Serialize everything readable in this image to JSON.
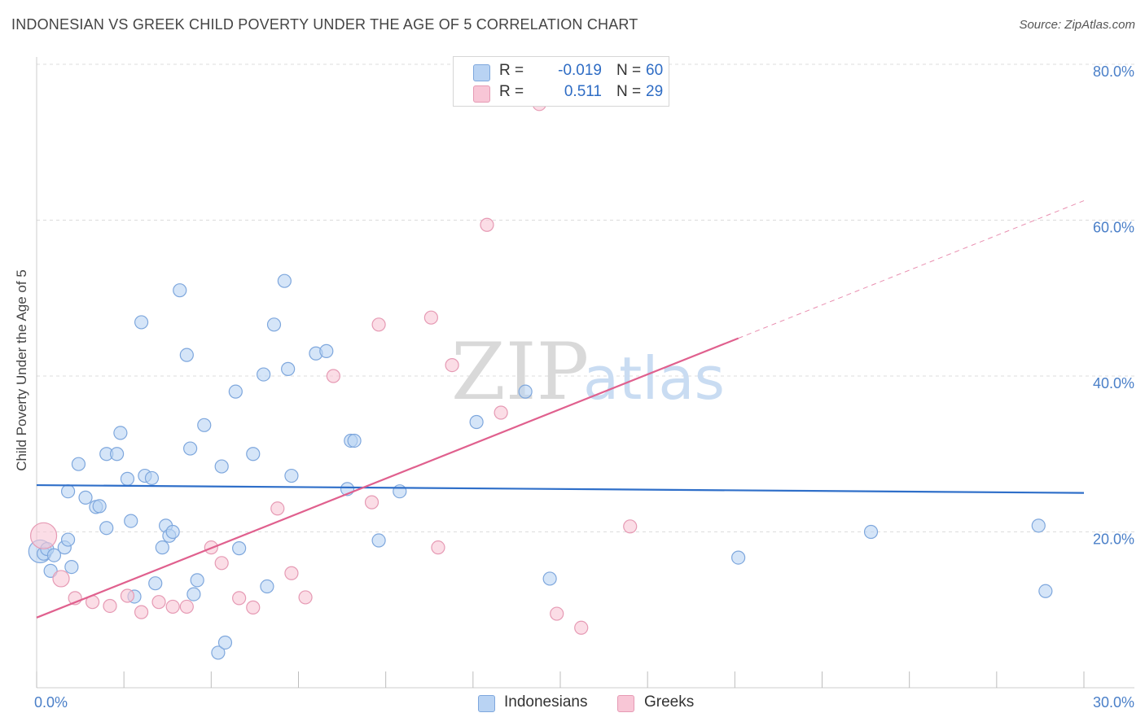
{
  "title": "INDONESIAN VS GREEK CHILD POVERTY UNDER THE AGE OF 5 CORRELATION CHART",
  "source": "Source: ZipAtlas.com",
  "watermark": {
    "zip": "ZIP",
    "atlas": "atlas"
  },
  "legend": {
    "indonesians": {
      "r_label": "R =",
      "r_value": "-0.019",
      "n_label": "N =",
      "n_value": "60"
    },
    "greeks": {
      "r_label": "R =",
      "r_value": "0.511",
      "n_label": "N =",
      "n_value": "29"
    }
  },
  "bottom_legend": {
    "indonesians": "Indonesians",
    "greeks": "Greeks"
  },
  "colors": {
    "indonesians_fill": "#b9d3f3",
    "indonesians_stroke": "#7ea7dd",
    "indonesians_line": "#2f6fc9",
    "greeks_fill": "#f8c6d6",
    "greeks_stroke": "#e69ab4",
    "greeks_line": "#e0608e",
    "tick_text": "#4a7fc8",
    "grid": "#dcdcdc"
  },
  "chart_data": {
    "type": "scatter",
    "title": "INDONESIAN VS GREEK CHILD POVERTY UNDER THE AGE OF 5 CORRELATION CHART",
    "xlabel": "",
    "ylabel": "Child Poverty Under the Age of 5",
    "xlim": [
      0,
      30
    ],
    "ylim": [
      0,
      82
    ],
    "x_tick_labels": [
      {
        "value": 0,
        "label": "0.0%"
      },
      {
        "value": 30,
        "label": "30.0%"
      }
    ],
    "y_tick_labels": [
      {
        "value": 20,
        "label": "20.0%"
      },
      {
        "value": 40,
        "label": "40.0%"
      },
      {
        "value": 60,
        "label": "60.0%"
      },
      {
        "value": 80,
        "label": "80.0%"
      }
    ],
    "series": [
      {
        "name": "Indonesians",
        "R": -0.019,
        "N": 60,
        "trend": {
          "x": [
            0,
            30
          ],
          "y": [
            26.0,
            25.0
          ],
          "dashed_from": null
        },
        "points": [
          [
            0.1,
            17.5,
            14
          ],
          [
            0.2,
            17.2,
            8
          ],
          [
            0.3,
            17.8,
            8
          ],
          [
            0.4,
            15.0,
            8
          ],
          [
            0.5,
            17.0,
            8
          ],
          [
            0.8,
            18.0,
            8
          ],
          [
            0.9,
            19.0,
            8
          ],
          [
            1.0,
            15.5,
            8
          ],
          [
            0.9,
            25.2,
            8
          ],
          [
            1.2,
            28.7,
            8
          ],
          [
            1.4,
            24.4,
            8
          ],
          [
            1.7,
            23.2,
            8
          ],
          [
            1.8,
            23.3,
            8
          ],
          [
            2.0,
            20.5,
            8
          ],
          [
            2.0,
            30.0,
            8
          ],
          [
            2.3,
            30.0,
            8
          ],
          [
            2.4,
            32.7,
            8
          ],
          [
            2.6,
            26.8,
            8
          ],
          [
            2.7,
            21.4,
            8
          ],
          [
            2.8,
            11.7,
            8
          ],
          [
            3.0,
            46.9,
            8
          ],
          [
            3.1,
            27.2,
            8
          ],
          [
            3.3,
            26.9,
            8
          ],
          [
            3.4,
            13.4,
            8
          ],
          [
            3.6,
            18.0,
            8
          ],
          [
            3.7,
            20.8,
            8
          ],
          [
            3.8,
            19.5,
            8
          ],
          [
            3.9,
            20.0,
            8
          ],
          [
            4.1,
            51.0,
            8
          ],
          [
            4.3,
            42.7,
            8
          ],
          [
            4.4,
            30.7,
            8
          ],
          [
            4.5,
            12.0,
            8
          ],
          [
            4.6,
            13.8,
            8
          ],
          [
            4.8,
            33.7,
            8
          ],
          [
            5.2,
            4.5,
            8
          ],
          [
            5.3,
            28.4,
            8
          ],
          [
            5.4,
            5.8,
            8
          ],
          [
            5.7,
            38.0,
            8
          ],
          [
            5.8,
            17.9,
            8
          ],
          [
            6.2,
            30.0,
            8
          ],
          [
            6.5,
            40.2,
            8
          ],
          [
            6.6,
            13.0,
            8
          ],
          [
            6.8,
            46.6,
            8
          ],
          [
            7.1,
            52.2,
            8
          ],
          [
            7.2,
            40.9,
            8
          ],
          [
            7.3,
            27.2,
            8
          ],
          [
            8.0,
            42.9,
            8
          ],
          [
            8.3,
            43.2,
            8
          ],
          [
            8.9,
            25.5,
            8
          ],
          [
            9.0,
            31.7,
            8
          ],
          [
            9.1,
            31.7,
            8
          ],
          [
            9.8,
            18.9,
            8
          ],
          [
            10.4,
            25.2,
            8
          ],
          [
            12.6,
            34.1,
            8
          ],
          [
            14.0,
            38.0,
            8
          ],
          [
            14.7,
            14.0,
            8
          ],
          [
            20.1,
            16.7,
            8
          ],
          [
            23.9,
            20.0,
            8
          ],
          [
            28.7,
            20.8,
            8
          ],
          [
            28.9,
            12.4,
            8
          ]
        ]
      },
      {
        "name": "Greeks",
        "R": 0.511,
        "N": 29,
        "trend": {
          "x": [
            0,
            30
          ],
          "y": [
            9.0,
            62.5
          ],
          "dashed_from": 20.1
        },
        "points": [
          [
            0.2,
            19.5,
            16
          ],
          [
            0.7,
            14.0,
            10
          ],
          [
            1.1,
            11.5,
            8
          ],
          [
            1.6,
            11.0,
            8
          ],
          [
            2.1,
            10.5,
            8
          ],
          [
            2.6,
            11.8,
            8
          ],
          [
            3.0,
            9.7,
            8
          ],
          [
            3.5,
            11.0,
            8
          ],
          [
            3.9,
            10.4,
            8
          ],
          [
            4.3,
            10.4,
            8
          ],
          [
            5.0,
            18.0,
            8
          ],
          [
            5.3,
            16.0,
            8
          ],
          [
            5.8,
            11.5,
            8
          ],
          [
            6.2,
            10.3,
            8
          ],
          [
            6.9,
            23.0,
            8
          ],
          [
            7.3,
            14.7,
            8
          ],
          [
            7.7,
            11.6,
            8
          ],
          [
            8.5,
            40.0,
            8
          ],
          [
            9.6,
            23.8,
            8
          ],
          [
            9.8,
            46.6,
            8
          ],
          [
            11.3,
            47.5,
            8
          ],
          [
            11.5,
            18.0,
            8
          ],
          [
            11.9,
            41.4,
            8
          ],
          [
            12.9,
            59.4,
            8
          ],
          [
            13.3,
            35.3,
            8
          ],
          [
            14.4,
            74.9,
            8
          ],
          [
            14.9,
            9.5,
            8
          ],
          [
            15.6,
            7.7,
            8
          ],
          [
            17.0,
            20.7,
            8
          ]
        ]
      }
    ]
  }
}
